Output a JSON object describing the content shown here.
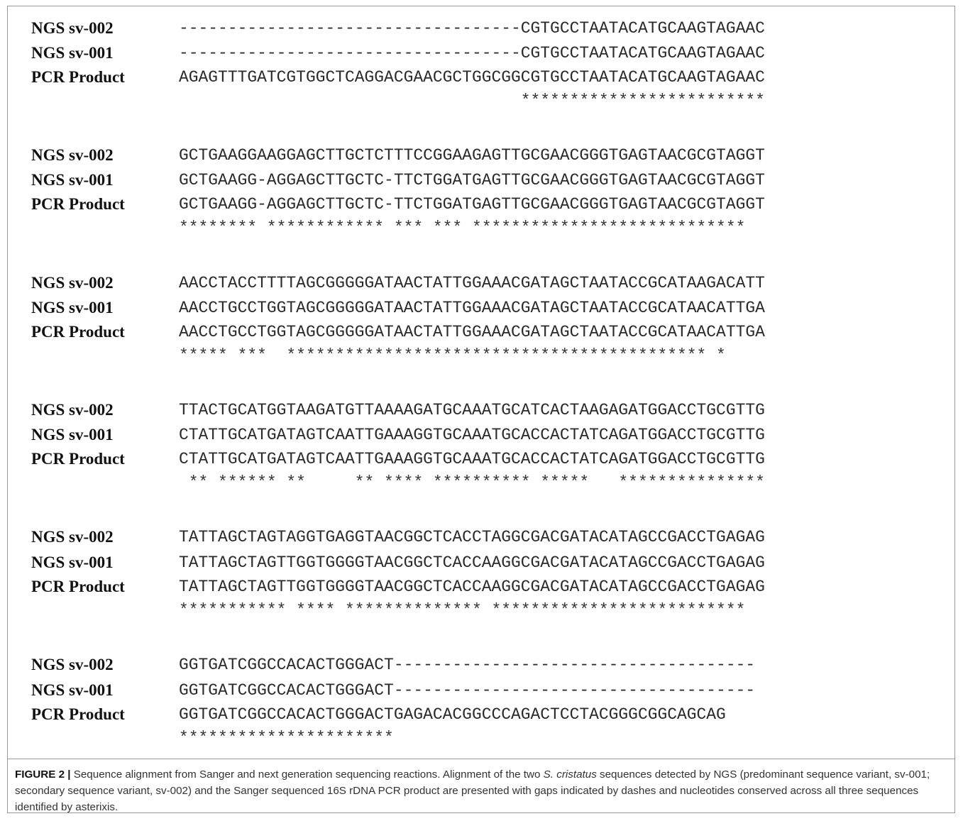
{
  "blocks": [
    {
      "rows": [
        {
          "label": "NGS sv-002",
          "seq": "-----------------------------------CGTGCCTAATACATGCAAGTAGAAC"
        },
        {
          "label": "NGS sv-001",
          "seq": "-----------------------------------CGTGCCTAATACATGCAAGTAGAAC"
        },
        {
          "label": "PCR Product",
          "seq": "AGAGTTTGATCGTGGCTCAGGACGAACGCTGGCGGCGTGCCTAATACATGCAAGTAGAAC"
        }
      ],
      "consensus": "                                   *************************"
    },
    {
      "rows": [
        {
          "label": "NGS sv-002",
          "seq": "GCTGAAGGAAGGAGCTTGCTCTTTCCGGAAGAGTTGCGAACGGGTGAGTAACGCGTAGGT"
        },
        {
          "label": "NGS sv-001",
          "seq": "GCTGAAGG-AGGAGCTTGCTC-TTCTGGATGAGTTGCGAACGGGTGAGTAACGCGTAGGT"
        },
        {
          "label": "PCR Product",
          "seq": "GCTGAAGG-AGGAGCTTGCTC-TTCTGGATGAGTTGCGAACGGGTGAGTAACGCGTAGGT"
        }
      ],
      "consensus": "******** ************ *** *** ****************************"
    },
    {
      "rows": [
        {
          "label": "NGS sv-002",
          "seq": "AACCTACCTTTTAGCGGGGGATAACTATTGGAAACGATAGCTAATACCGCATAAGACATT"
        },
        {
          "label": "NGS sv-001",
          "seq": "AACCTGCCTGGTAGCGGGGGATAACTATTGGAAACGATAGCTAATACCGCATAACATTGA"
        },
        {
          "label": "PCR Product",
          "seq": "AACCTGCCTGGTAGCGGGGGATAACTATTGGAAACGATAGCTAATACCGCATAACATTGA"
        }
      ],
      "consensus": "***** ***  ******************************************* *"
    },
    {
      "rows": [
        {
          "label": "NGS sv-002",
          "seq": "TTACTGCATGGTAAGATGTTAAAAGATGCAAATGCATCACTAAGAGATGGACCTGCGTTG"
        },
        {
          "label": "NGS sv-001",
          "seq": "CTATTGCATGATAGTCAATTGAAAGGTGCAAATGCACCACTATCAGATGGACCTGCGTTG"
        },
        {
          "label": "PCR Product",
          "seq": "CTATTGCATGATAGTCAATTGAAAGGTGCAAATGCACCACTATCAGATGGACCTGCGTTG"
        }
      ],
      "consensus": " ** ****** **     ** **** ********** *****   ***************"
    },
    {
      "rows": [
        {
          "label": "NGS sv-002",
          "seq": "TATTAGCTAGTAGGTGAGGTAACGGCTCACCTAGGCGACGATACATAGCCGACCTGAGAG"
        },
        {
          "label": "NGS sv-001",
          "seq": "TATTAGCTAGTTGGTGGGGTAACGGCTCACCAAGGCGACGATACATAGCCGACCTGAGAG"
        },
        {
          "label": "PCR Product",
          "seq": "TATTAGCTAGTTGGTGGGGTAACGGCTCACCAAGGCGACGATACATAGCCGACCTGAGAG"
        }
      ],
      "consensus": "*********** **** ************** **************************"
    },
    {
      "rows": [
        {
          "label": "NGS sv-002",
          "seq": "GGTGATCGGCCACACTGGGACT-------------------------------------"
        },
        {
          "label": "NGS sv-001",
          "seq": "GGTGATCGGCCACACTGGGACT-------------------------------------"
        },
        {
          "label": "PCR Product",
          "seq": "GGTGATCGGCCACACTGGGACTGAGACACGGCCCAGACTCCTACGGGCGGCAGCAG"
        }
      ],
      "consensus": "**********************"
    }
  ],
  "caption": {
    "figure_label": "FIGURE 2 |",
    "text_before": " Sequence alignment from Sanger and next generation sequencing reactions. Alignment of the two ",
    "species": "S. cristatus",
    "text_after": " sequences detected by NGS (predominant sequence variant, sv-001; secondary sequence variant, sv-002) and the Sanger sequenced 16S rDNA PCR product are presented with gaps indicated by dashes and nucleotides conserved across all three sequences identified by asterixis."
  }
}
